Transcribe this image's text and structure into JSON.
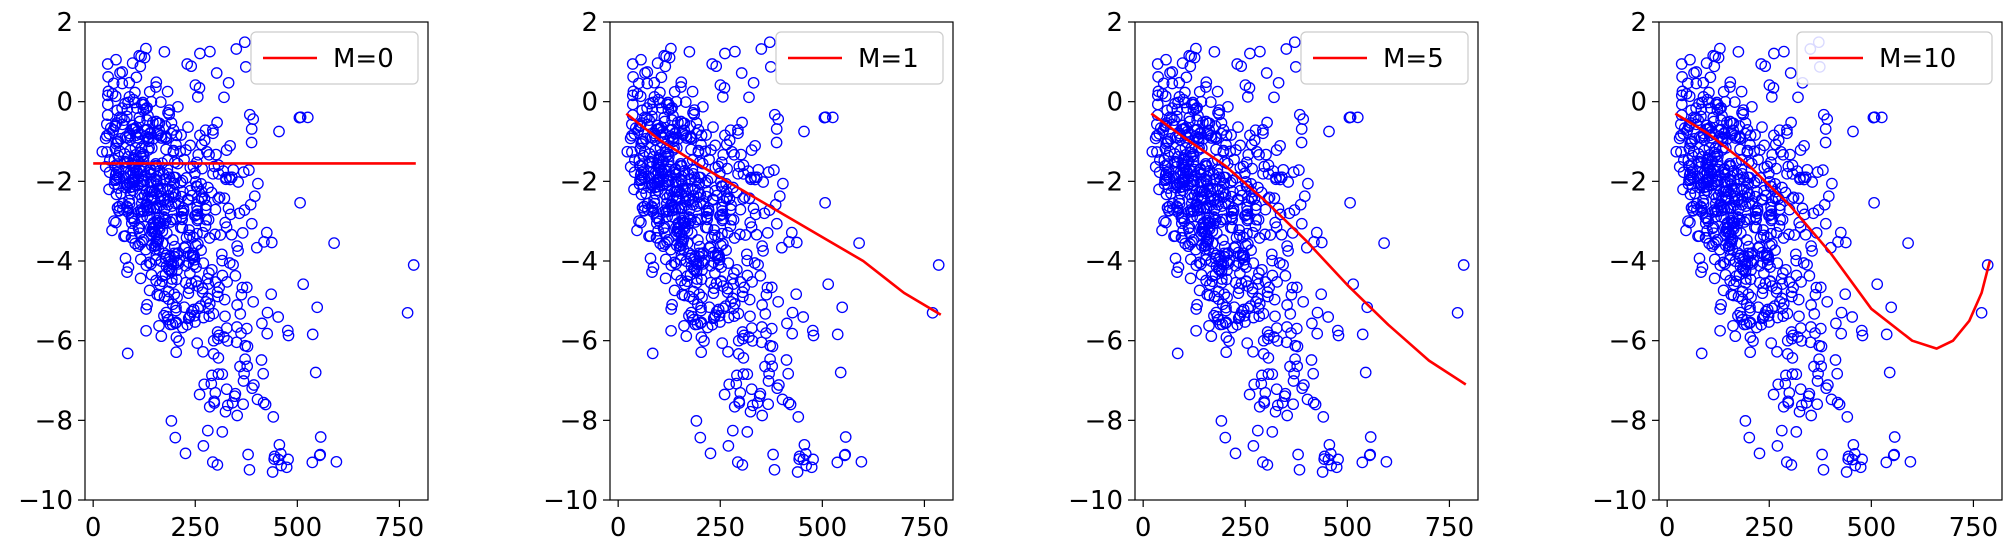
{
  "figure": {
    "panel_count": 4
  },
  "chart_data": [
    {
      "type": "scatter",
      "title": "",
      "xlabel": "",
      "ylabel": "",
      "xlim": [
        -20,
        820
      ],
      "ylim": [
        -10,
        2
      ],
      "xticks": [
        0,
        250,
        500,
        750
      ],
      "yticks": [
        -10,
        -8,
        -6,
        -4,
        -2,
        0,
        2
      ],
      "legend": {
        "label": "M=0",
        "placement": "top-right"
      },
      "series": [
        {
          "name": "data",
          "kind": "points",
          "marker": "open-circle",
          "color": "#0000ff",
          "n_points_estimated": 700
        },
        {
          "name": "M=0",
          "kind": "line",
          "color": "#ff0000",
          "x": [
            0,
            100,
            200,
            300,
            400,
            500,
            600,
            700,
            790
          ],
          "y": [
            -1.55,
            -1.55,
            -1.55,
            -1.55,
            -1.55,
            -1.55,
            -1.55,
            -1.55,
            -1.55
          ]
        }
      ]
    },
    {
      "type": "scatter",
      "title": "",
      "xlabel": "",
      "ylabel": "",
      "xlim": [
        -20,
        820
      ],
      "ylim": [
        -10,
        2
      ],
      "xticks": [
        0,
        250,
        500,
        750
      ],
      "yticks": [
        -10,
        -8,
        -6,
        -4,
        -2,
        0,
        2
      ],
      "legend": {
        "label": "M=1",
        "placement": "top-right"
      },
      "series": [
        {
          "name": "data",
          "kind": "points",
          "marker": "open-circle",
          "color": "#0000ff",
          "n_points_estimated": 700
        },
        {
          "name": "M=1",
          "kind": "line",
          "color": "#ff0000",
          "x": [
            20,
            100,
            200,
            300,
            400,
            500,
            600,
            700,
            790
          ],
          "y": [
            -0.3,
            -0.95,
            -1.6,
            -2.2,
            -2.8,
            -3.4,
            -4.0,
            -4.8,
            -5.35
          ]
        }
      ]
    },
    {
      "type": "scatter",
      "title": "",
      "xlabel": "",
      "ylabel": "",
      "xlim": [
        -20,
        820
      ],
      "ylim": [
        -10,
        2
      ],
      "xticks": [
        0,
        250,
        500,
        750
      ],
      "yticks": [
        -10,
        -8,
        -6,
        -4,
        -2,
        0,
        2
      ],
      "legend": {
        "label": "M=5",
        "placement": "top-right"
      },
      "series": [
        {
          "name": "data",
          "kind": "points",
          "marker": "open-circle",
          "color": "#0000ff",
          "n_points_estimated": 700
        },
        {
          "name": "M=5",
          "kind": "line",
          "color": "#ff0000",
          "x": [
            20,
            100,
            200,
            300,
            400,
            500,
            600,
            700,
            790
          ],
          "y": [
            -0.3,
            -0.9,
            -1.6,
            -2.5,
            -3.5,
            -4.6,
            -5.6,
            -6.5,
            -7.1
          ]
        }
      ]
    },
    {
      "type": "scatter",
      "title": "",
      "xlabel": "",
      "ylabel": "",
      "xlim": [
        -20,
        820
      ],
      "ylim": [
        -10,
        2
      ],
      "xticks": [
        0,
        250,
        500,
        750
      ],
      "yticks": [
        -10,
        -8,
        -6,
        -4,
        -2,
        0,
        2
      ],
      "legend": {
        "label": "M=10",
        "placement": "top-right"
      },
      "series": [
        {
          "name": "data",
          "kind": "points",
          "marker": "open-circle",
          "color": "#0000ff",
          "n_points_estimated": 700
        },
        {
          "name": "M=10",
          "kind": "line",
          "color": "#ff0000",
          "x": [
            20,
            100,
            200,
            300,
            400,
            500,
            600,
            660,
            700,
            740,
            770,
            790
          ],
          "y": [
            -0.3,
            -0.8,
            -1.6,
            -2.6,
            -3.8,
            -5.2,
            -6.0,
            -6.2,
            -6.0,
            -5.5,
            -4.8,
            -4.0
          ]
        }
      ]
    }
  ]
}
